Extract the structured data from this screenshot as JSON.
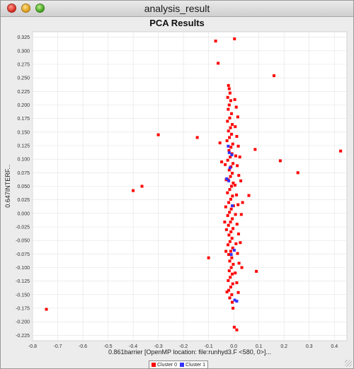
{
  "window": {
    "title": "analysis_result"
  },
  "chart_data": {
    "type": "scatter",
    "title": "PCA Results",
    "xlabel": "0.861barrier  [OpenMP location: file:runhyd3.F <580, 0>]...",
    "ylabel": "0.647INTERF...",
    "xlim": [
      -0.8,
      0.45
    ],
    "ylim": [
      -0.235,
      0.335
    ],
    "xticks": [
      "-0.8",
      "-0.7",
      "-0.6",
      "-0.5",
      "-0.4",
      "-0.3",
      "-0.2",
      "-0.1",
      "0.0",
      "0.1",
      "0.2",
      "0.3",
      "0.4"
    ],
    "yticks": [
      "0.325",
      "0.300",
      "0.275",
      "0.250",
      "0.225",
      "0.200",
      "0.175",
      "0.150",
      "0.125",
      "0.100",
      "0.075",
      "0.050",
      "0.025",
      "0.000",
      "-0.025",
      "-0.050",
      "-0.075",
      "-0.100",
      "-0.125",
      "-0.150",
      "-0.175",
      "-0.200",
      "-0.225"
    ],
    "grid": true,
    "legend_position": "bottom",
    "colors": {
      "Cluster 0": "#ff0000",
      "Cluster 1": "#3333ff"
    },
    "series": [
      {
        "name": "Cluster 0",
        "points": [
          [
            -0.745,
            -0.177
          ],
          [
            -0.4,
            0.042
          ],
          [
            -0.365,
            0.05
          ],
          [
            -0.3,
            0.145
          ],
          [
            -0.145,
            0.14
          ],
          [
            -0.1,
            -0.082
          ],
          [
            -0.072,
            0.318
          ],
          [
            -0.062,
            0.277
          ],
          [
            -0.055,
            0.13
          ],
          [
            -0.048,
            0.095
          ],
          [
            0.003,
            0.322
          ],
          [
            0.085,
            0.118
          ],
          [
            0.16,
            0.254
          ],
          [
            0.185,
            0.097
          ],
          [
            0.255,
            0.075
          ],
          [
            0.425,
            0.115
          ],
          [
            0.09,
            -0.107
          ],
          [
            0.06,
            0.033
          ],
          [
            -0.027,
            -0.145
          ],
          [
            0.002,
            -0.21
          ],
          [
            0.012,
            -0.215
          ],
          [
            -0.003,
            -0.175
          ],
          [
            -0.021,
            0.236
          ],
          [
            -0.018,
            0.23
          ],
          [
            -0.015,
            0.222
          ],
          [
            -0.024,
            0.214
          ],
          [
            -0.012,
            0.208
          ],
          [
            -0.018,
            0.2
          ],
          [
            -0.022,
            0.192
          ],
          [
            -0.009,
            0.184
          ],
          [
            -0.016,
            0.176
          ],
          [
            -0.025,
            0.17
          ],
          [
            -0.006,
            0.164
          ],
          [
            -0.013,
            0.158
          ],
          [
            -0.021,
            0.152
          ],
          [
            -0.009,
            0.146
          ],
          [
            -0.017,
            0.14
          ],
          [
            -0.027,
            0.134
          ],
          [
            -0.004,
            0.128
          ],
          [
            -0.011,
            0.122
          ],
          [
            -0.019,
            0.116
          ],
          [
            -0.007,
            0.11
          ],
          [
            -0.014,
            0.104
          ],
          [
            -0.024,
            0.098
          ],
          [
            -0.003,
            0.092
          ],
          [
            -0.011,
            0.086
          ],
          [
            -0.018,
            0.08
          ],
          [
            -0.006,
            0.074
          ],
          [
            -0.013,
            0.068
          ],
          [
            -0.022,
            0.062
          ],
          [
            -0.002,
            0.056
          ],
          [
            -0.009,
            0.05
          ],
          [
            -0.016,
            0.044
          ],
          [
            -0.025,
            0.038
          ],
          [
            -0.005,
            0.032
          ],
          [
            -0.012,
            0.026
          ],
          [
            -0.02,
            0.02
          ],
          [
            -0.001,
            0.014
          ],
          [
            -0.01,
            0.008
          ],
          [
            -0.017,
            0.002
          ],
          [
            -0.024,
            -0.004
          ],
          [
            -0.006,
            -0.01
          ],
          [
            -0.013,
            -0.016
          ],
          [
            -0.021,
            -0.022
          ],
          [
            -0.003,
            -0.028
          ],
          [
            -0.011,
            -0.034
          ],
          [
            -0.019,
            -0.04
          ],
          [
            -0.007,
            -0.046
          ],
          [
            -0.015,
            -0.052
          ],
          [
            -0.023,
            -0.058
          ],
          [
            -0.004,
            -0.064
          ],
          [
            -0.012,
            -0.07
          ],
          [
            -0.02,
            -0.076
          ],
          [
            -0.008,
            -0.082
          ],
          [
            -0.016,
            -0.088
          ],
          [
            -0.002,
            -0.094
          ],
          [
            -0.01,
            -0.1
          ],
          [
            -0.018,
            -0.106
          ],
          [
            -0.006,
            -0.112
          ],
          [
            -0.014,
            -0.118
          ],
          [
            -0.022,
            -0.124
          ],
          [
            -0.004,
            -0.13
          ],
          [
            -0.012,
            -0.136
          ],
          [
            -0.02,
            -0.142
          ],
          [
            -0.008,
            -0.15
          ],
          [
            -0.016,
            -0.156
          ],
          [
            -0.006,
            -0.164
          ],
          [
            0.004,
            0.21
          ],
          [
            0.01,
            0.196
          ],
          [
            0.016,
            0.178
          ],
          [
            0.006,
            0.16
          ],
          [
            0.012,
            0.142
          ],
          [
            0.018,
            0.124
          ],
          [
            0.008,
            0.106
          ],
          [
            0.014,
            0.088
          ],
          [
            0.02,
            0.07
          ],
          [
            0.005,
            0.052
          ],
          [
            0.011,
            0.034
          ],
          [
            0.017,
            0.016
          ],
          [
            0.007,
            -0.002
          ],
          [
            0.013,
            -0.02
          ],
          [
            0.019,
            -0.038
          ],
          [
            0.009,
            -0.056
          ],
          [
            0.015,
            -0.074
          ],
          [
            0.021,
            -0.092
          ],
          [
            0.006,
            -0.11
          ],
          [
            0.012,
            -0.128
          ],
          [
            0.018,
            -0.146
          ],
          [
            0.028,
            0.06
          ],
          [
            0.03,
            -0.002
          ],
          [
            0.026,
            -0.054
          ],
          [
            0.032,
            -0.1
          ],
          [
            0.035,
            0.02
          ],
          [
            0.024,
            0.104
          ],
          [
            -0.03,
            0.062
          ],
          [
            -0.032,
            0.012
          ],
          [
            -0.029,
            -0.03
          ],
          [
            -0.031,
            -0.07
          ],
          [
            -0.034,
            0.09
          ],
          [
            -0.036,
            -0.016
          ]
        ]
      },
      {
        "name": "Cluster 1",
        "points": [
          [
            -0.022,
            0.124
          ],
          [
            -0.018,
            0.112
          ],
          [
            -0.008,
            0.108
          ],
          [
            -0.015,
            0.084
          ],
          [
            -0.028,
            0.064
          ],
          [
            -0.02,
            0.06
          ],
          [
            -0.006,
            0.014
          ],
          [
            0.002,
            -0.068
          ],
          [
            -0.01,
            -0.076
          ],
          [
            0.004,
            -0.16
          ],
          [
            0.012,
            -0.162
          ]
        ]
      }
    ]
  }
}
